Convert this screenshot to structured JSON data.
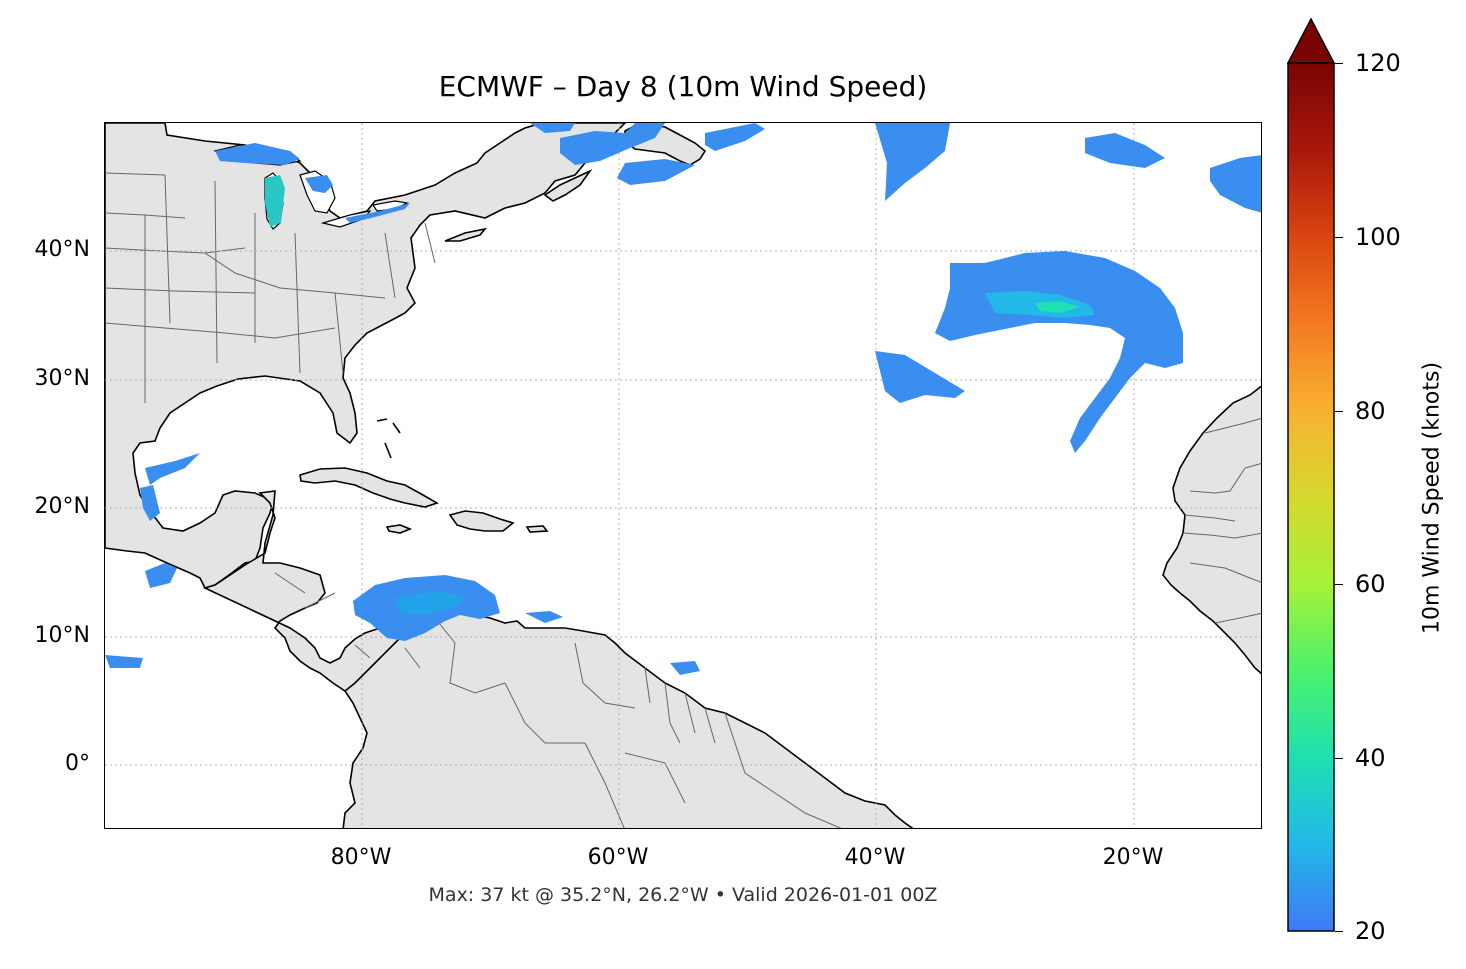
{
  "title": "ECMWF – Day 8 (10m Wind Speed)",
  "footer": "Max: 37 kt @ 35.2°N, 26.2°W • Valid 2026-01-01 00Z",
  "map": {
    "lat_labels": [
      "40°N",
      "30°N",
      "20°N",
      "10°N",
      "0°"
    ],
    "lon_labels": [
      "80°W",
      "60°W",
      "40°W",
      "20°W"
    ],
    "lat_range": [
      -5,
      50
    ],
    "lon_range": [
      -100,
      -10
    ],
    "land_color": "#e4e4e4",
    "ocean_color": "#ffffff",
    "gridlines": true
  },
  "colorbar": {
    "label": "10m Wind Speed (knots)",
    "ticks": [
      "20",
      "40",
      "60",
      "80",
      "100",
      "120"
    ],
    "min": 20,
    "max": 120,
    "extend": "max",
    "colors": [
      "#3f7af5",
      "#22b8e8",
      "#1ee0b0",
      "#4cf26a",
      "#a8f03a",
      "#d6d82e",
      "#f8b132",
      "#f47a22",
      "#d94510",
      "#a8180a",
      "#7a0403"
    ]
  }
}
